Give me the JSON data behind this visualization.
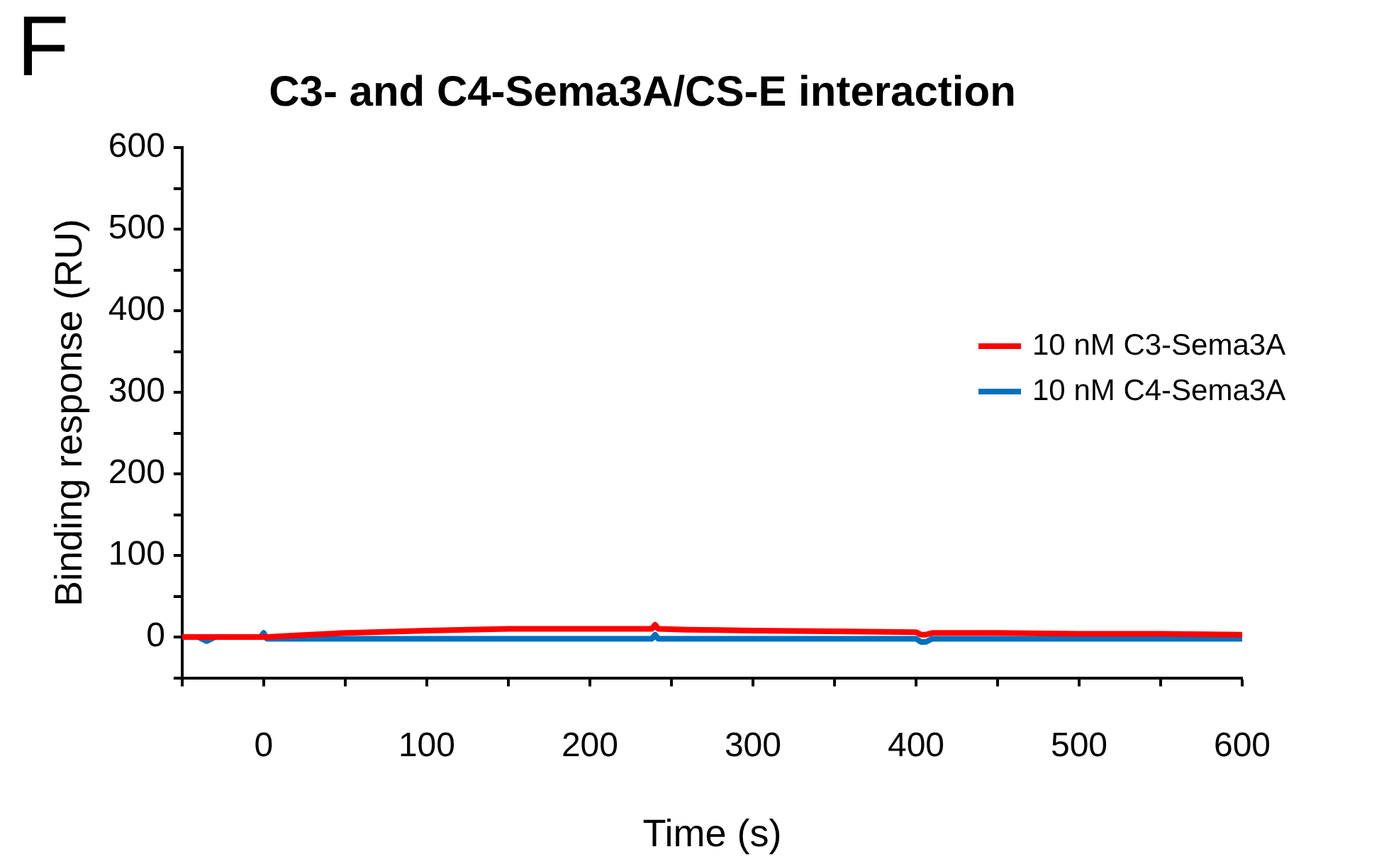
{
  "chart_data": {
    "type": "line",
    "title": "C3- and C4-Sema3A/CS-E interaction",
    "xlabel": "Time (s)",
    "ylabel": "Binding response (RU)",
    "annotations": [
      "F"
    ],
    "xlim": [
      -50,
      600
    ],
    "xticks": [
      {
        "value": -50,
        "label": null
      },
      0,
      {
        "value": 50,
        "label": null
      },
      100,
      {
        "value": 150,
        "label": null
      },
      200,
      {
        "value": 250,
        "label": null
      },
      300,
      {
        "value": 350,
        "label": null
      },
      400,
      {
        "value": 450,
        "label": null
      },
      500,
      {
        "value": 550,
        "label": null
      },
      600
    ],
    "ylim": [
      -50,
      600
    ],
    "yticks": [
      {
        "value": -50,
        "label": null
      },
      0,
      {
        "value": 50,
        "label": null
      },
      100,
      {
        "value": 150,
        "label": null
      },
      200,
      {
        "value": 250,
        "label": null
      },
      300,
      {
        "value": 350,
        "label": null
      },
      400,
      {
        "value": 450,
        "label": null
      },
      500,
      {
        "value": 550,
        "label": null
      },
      600
    ],
    "legend": "right",
    "marker": "none",
    "line_style": "solid",
    "grid": false,
    "series": [
      {
        "name": "10 nM C3-Sema3A",
        "color": "#ff0000",
        "x": [
          -50,
          -30,
          -2,
          0,
          2,
          20,
          50,
          100,
          150,
          200,
          238,
          240,
          242,
          260,
          300,
          350,
          400,
          403,
          406,
          410,
          450,
          500,
          550,
          600
        ],
        "values": [
          0,
          0,
          0,
          0,
          0,
          2,
          5,
          8,
          10,
          10,
          10,
          15,
          10,
          9,
          8,
          7,
          6,
          3,
          3,
          5,
          5,
          4,
          4,
          3
        ]
      },
      {
        "name": "10 nM C4-Sema3A",
        "color": "#0070c0",
        "x": [
          -50,
          -40,
          -35,
          -30,
          -2,
          0,
          2,
          20,
          100,
          200,
          238,
          240,
          242,
          300,
          400,
          403,
          406,
          410,
          450,
          500,
          600
        ],
        "values": [
          0,
          0,
          -5,
          0,
          0,
          5,
          -2,
          -2,
          -2,
          -2,
          -2,
          3,
          -2,
          -2,
          -2,
          -6,
          -6,
          -2,
          -2,
          -2,
          -2
        ]
      }
    ]
  }
}
